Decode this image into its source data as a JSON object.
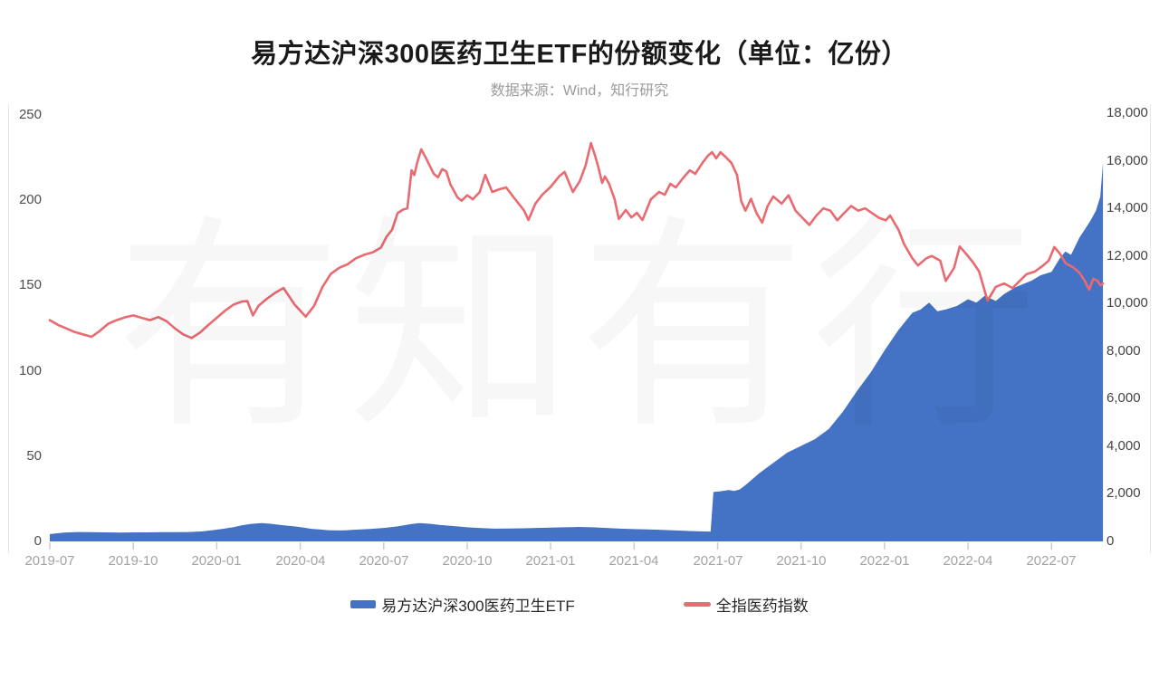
{
  "title": "易方达沪深300医药卫生ETF的份额变化（单位：亿份）",
  "subtitle": "数据来源：Wind，知行研究",
  "watermark": "有知有行",
  "colors": {
    "etf_area": "#4472c4",
    "index_line": "#e96a70",
    "title_text": "#1a1a1a",
    "subtitle_text": "#9b9b9b",
    "y_axis_text": "#4d4d4d",
    "x_axis_text": "#a3a3a3",
    "tick": "#cccccc",
    "plot_border": "#e7e7e7",
    "legend_text": "#262626"
  },
  "chart_data": {
    "type": "combo",
    "title": "易方达沪深300医药卫生ETF的份额变化（单位：亿份）",
    "subtitle": "数据来源：Wind，知行研究",
    "x_unit": "months_since_2019-07",
    "grid": "off",
    "legend_position": "bottom",
    "x_axis": {
      "labels": [
        "2019-07",
        "2019-10",
        "2020-01",
        "2020-04",
        "2020-07",
        "2020-10",
        "2021-01",
        "2021-04",
        "2021-07",
        "2021-10",
        "2022-01",
        "2022-04",
        "2022-07"
      ],
      "label_positions_months": [
        0,
        3,
        6,
        9,
        12,
        15,
        18,
        21,
        24,
        27,
        30,
        33,
        36
      ]
    },
    "left_axis": {
      "unit": "亿份",
      "tick_values": [
        0,
        50,
        100,
        150,
        200,
        250
      ],
      "tick_labels": [
        "0",
        "50",
        "100",
        "150",
        "200",
        "250"
      ],
      "range": [
        0,
        250
      ]
    },
    "right_axis": {
      "tick_values": [
        0,
        2000,
        4000,
        6000,
        8000,
        10000,
        12000,
        14000,
        16000,
        18000
      ],
      "tick_labels": [
        "0",
        "2,000",
        "4,000",
        "6,000",
        "8,000",
        "10,000",
        "12,000",
        "14,000",
        "16,000",
        "18,000"
      ],
      "range": [
        0,
        18000
      ]
    },
    "series": [
      {
        "name": "易方达沪深300医药卫生ETF",
        "type": "area",
        "axis": "left",
        "color": "#4472c4",
        "points": [
          [
            0,
            4.3
          ],
          [
            0.5,
            5.2
          ],
          [
            1,
            5.5
          ],
          [
            1.5,
            5.4
          ],
          [
            2,
            5.3
          ],
          [
            2.5,
            5.2
          ],
          [
            3,
            5.3
          ],
          [
            3.5,
            5.3
          ],
          [
            4,
            5.4
          ],
          [
            4.5,
            5.4
          ],
          [
            5,
            5.5
          ],
          [
            5.5,
            5.9
          ],
          [
            6,
            6.9
          ],
          [
            6.3,
            7.6
          ],
          [
            6.6,
            8.4
          ],
          [
            6.9,
            9.4
          ],
          [
            7.2,
            10.2
          ],
          [
            7.6,
            10.8
          ],
          [
            7.9,
            10.4
          ],
          [
            8.2,
            9.8
          ],
          [
            8.5,
            9.3
          ],
          [
            8.8,
            8.8
          ],
          [
            9.1,
            8.2
          ],
          [
            9.4,
            7.4
          ],
          [
            9.7,
            7.0
          ],
          [
            10,
            6.6
          ],
          [
            10.5,
            6.4
          ],
          [
            11,
            6.9
          ],
          [
            11.5,
            7.3
          ],
          [
            12,
            7.9
          ],
          [
            12.5,
            8.8
          ],
          [
            13,
            10.2
          ],
          [
            13.3,
            10.7
          ],
          [
            13.7,
            10.3
          ],
          [
            14,
            9.7
          ],
          [
            14.5,
            9.0
          ],
          [
            15,
            8.3
          ],
          [
            15.5,
            7.8
          ],
          [
            16,
            7.5
          ],
          [
            16.5,
            7.6
          ],
          [
            17,
            7.7
          ],
          [
            17.5,
            7.9
          ],
          [
            18,
            8.1
          ],
          [
            18.5,
            8.3
          ],
          [
            19,
            8.5
          ],
          [
            19.5,
            8.3
          ],
          [
            20,
            7.9
          ],
          [
            20.5,
            7.5
          ],
          [
            21,
            7.2
          ],
          [
            21.5,
            7.0
          ],
          [
            22,
            6.8
          ],
          [
            22.5,
            6.4
          ],
          [
            23,
            6.1
          ],
          [
            23.4,
            5.9
          ],
          [
            23.75,
            5.8
          ],
          [
            23.85,
            29
          ],
          [
            24.1,
            29.4
          ],
          [
            24.4,
            30.1
          ],
          [
            24.6,
            29.6
          ],
          [
            24.8,
            30.5
          ],
          [
            25,
            33
          ],
          [
            25.5,
            40
          ],
          [
            26,
            46
          ],
          [
            26.5,
            52
          ],
          [
            27,
            56
          ],
          [
            27.5,
            60
          ],
          [
            28,
            66
          ],
          [
            28.5,
            76
          ],
          [
            29,
            88
          ],
          [
            29.5,
            99
          ],
          [
            30,
            112
          ],
          [
            30.5,
            124
          ],
          [
            31,
            134
          ],
          [
            31.3,
            136
          ],
          [
            31.6,
            140
          ],
          [
            31.9,
            135
          ],
          [
            32.2,
            136
          ],
          [
            32.6,
            138
          ],
          [
            33,
            142
          ],
          [
            33.3,
            140
          ],
          [
            33.6,
            144
          ],
          [
            34,
            141
          ],
          [
            34.3,
            145
          ],
          [
            34.7,
            149
          ],
          [
            35,
            151
          ],
          [
            35.3,
            153
          ],
          [
            35.6,
            156
          ],
          [
            36,
            158
          ],
          [
            36.3,
            166
          ],
          [
            36.5,
            170
          ],
          [
            36.7,
            168
          ],
          [
            37,
            178
          ],
          [
            37.2,
            183
          ],
          [
            37.4,
            188
          ],
          [
            37.6,
            194
          ],
          [
            37.75,
            202
          ],
          [
            37.85,
            222
          ]
        ]
      },
      {
        "name": "全指医药指数",
        "type": "line",
        "axis": "right",
        "color": "#e96a70",
        "points": [
          [
            0,
            9300
          ],
          [
            0.3,
            9100
          ],
          [
            0.6,
            8950
          ],
          [
            0.9,
            8800
          ],
          [
            1.2,
            8700
          ],
          [
            1.5,
            8600
          ],
          [
            1.8,
            8850
          ],
          [
            2.1,
            9150
          ],
          [
            2.4,
            9300
          ],
          [
            2.7,
            9420
          ],
          [
            3,
            9500
          ],
          [
            3.3,
            9400
          ],
          [
            3.6,
            9300
          ],
          [
            3.9,
            9430
          ],
          [
            4.2,
            9250
          ],
          [
            4.5,
            8950
          ],
          [
            4.8,
            8700
          ],
          [
            5.1,
            8550
          ],
          [
            5.4,
            8780
          ],
          [
            5.7,
            9100
          ],
          [
            6,
            9400
          ],
          [
            6.3,
            9700
          ],
          [
            6.6,
            9950
          ],
          [
            6.9,
            10080
          ],
          [
            7.1,
            10100
          ],
          [
            7.3,
            9500
          ],
          [
            7.5,
            9900
          ],
          [
            7.8,
            10200
          ],
          [
            8.1,
            10450
          ],
          [
            8.4,
            10650
          ],
          [
            8.6,
            10300
          ],
          [
            8.8,
            9950
          ],
          [
            9,
            9700
          ],
          [
            9.2,
            9450
          ],
          [
            9.5,
            9900
          ],
          [
            9.8,
            10700
          ],
          [
            10.1,
            11250
          ],
          [
            10.4,
            11500
          ],
          [
            10.7,
            11650
          ],
          [
            11,
            11900
          ],
          [
            11.3,
            12050
          ],
          [
            11.6,
            12150
          ],
          [
            11.9,
            12350
          ],
          [
            12.1,
            12800
          ],
          [
            12.3,
            13100
          ],
          [
            12.5,
            13800
          ],
          [
            12.7,
            13950
          ],
          [
            12.85,
            14000
          ],
          [
            13,
            15600
          ],
          [
            13.1,
            15400
          ],
          [
            13.2,
            15900
          ],
          [
            13.35,
            16480
          ],
          [
            13.5,
            16150
          ],
          [
            13.65,
            15800
          ],
          [
            13.8,
            15450
          ],
          [
            13.95,
            15300
          ],
          [
            14.1,
            15650
          ],
          [
            14.25,
            15550
          ],
          [
            14.4,
            15000
          ],
          [
            14.65,
            14460
          ],
          [
            14.8,
            14320
          ],
          [
            15,
            14550
          ],
          [
            15.2,
            14380
          ],
          [
            15.45,
            14680
          ],
          [
            15.65,
            15410
          ],
          [
            15.9,
            14690
          ],
          [
            16.15,
            14800
          ],
          [
            16.4,
            14880
          ],
          [
            16.65,
            14490
          ],
          [
            16.85,
            14200
          ],
          [
            17.05,
            13900
          ],
          [
            17.2,
            13510
          ],
          [
            17.45,
            14190
          ],
          [
            17.7,
            14570
          ],
          [
            18,
            14900
          ],
          [
            18.3,
            15340
          ],
          [
            18.5,
            15530
          ],
          [
            18.8,
            14690
          ],
          [
            19.05,
            15150
          ],
          [
            19.25,
            15790
          ],
          [
            19.45,
            16740
          ],
          [
            19.6,
            16200
          ],
          [
            19.7,
            15790
          ],
          [
            19.85,
            15070
          ],
          [
            19.95,
            15340
          ],
          [
            20.1,
            15030
          ],
          [
            20.3,
            14380
          ],
          [
            20.45,
            13550
          ],
          [
            20.7,
            13930
          ],
          [
            20.9,
            13620
          ],
          [
            21.1,
            13810
          ],
          [
            21.3,
            13510
          ],
          [
            21.6,
            14380
          ],
          [
            21.9,
            14690
          ],
          [
            22.1,
            14570
          ],
          [
            22.3,
            15030
          ],
          [
            22.5,
            14880
          ],
          [
            22.75,
            15260
          ],
          [
            23,
            15600
          ],
          [
            23.2,
            15450
          ],
          [
            23.45,
            15900
          ],
          [
            23.65,
            16210
          ],
          [
            23.8,
            16360
          ],
          [
            23.95,
            16100
          ],
          [
            24.1,
            16360
          ],
          [
            24.3,
            16150
          ],
          [
            24.5,
            15900
          ],
          [
            24.7,
            15400
          ],
          [
            24.85,
            14300
          ],
          [
            25,
            13900
          ],
          [
            25.2,
            14400
          ],
          [
            25.4,
            13800
          ],
          [
            25.6,
            13400
          ],
          [
            25.8,
            14100
          ],
          [
            26,
            14500
          ],
          [
            26.3,
            14200
          ],
          [
            26.55,
            14550
          ],
          [
            26.8,
            13900
          ],
          [
            27.05,
            13600
          ],
          [
            27.3,
            13300
          ],
          [
            27.55,
            13700
          ],
          [
            27.8,
            14000
          ],
          [
            28.05,
            13900
          ],
          [
            28.3,
            13500
          ],
          [
            28.55,
            13800
          ],
          [
            28.8,
            14100
          ],
          [
            29.05,
            13900
          ],
          [
            29.3,
            14000
          ],
          [
            29.55,
            13800
          ],
          [
            29.8,
            13600
          ],
          [
            30.05,
            13500
          ],
          [
            30.2,
            13700
          ],
          [
            30.5,
            13100
          ],
          [
            30.7,
            12500
          ],
          [
            31,
            11900
          ],
          [
            31.2,
            11600
          ],
          [
            31.5,
            11900
          ],
          [
            31.7,
            12000
          ],
          [
            32,
            11800
          ],
          [
            32.2,
            10950
          ],
          [
            32.5,
            11500
          ],
          [
            32.7,
            12400
          ],
          [
            33,
            11990
          ],
          [
            33.2,
            11700
          ],
          [
            33.4,
            11340
          ],
          [
            33.7,
            10120
          ],
          [
            34,
            10700
          ],
          [
            34.3,
            10840
          ],
          [
            34.6,
            10650
          ],
          [
            34.9,
            11000
          ],
          [
            35.1,
            11230
          ],
          [
            35.4,
            11340
          ],
          [
            35.7,
            11600
          ],
          [
            35.9,
            11800
          ],
          [
            36.1,
            12370
          ],
          [
            36.3,
            12100
          ],
          [
            36.5,
            11700
          ],
          [
            36.8,
            11500
          ],
          [
            37,
            11300
          ],
          [
            37.2,
            10950
          ],
          [
            37.35,
            10580
          ],
          [
            37.5,
            11040
          ],
          [
            37.65,
            10960
          ],
          [
            37.75,
            10770
          ],
          [
            37.85,
            10840
          ]
        ]
      }
    ]
  }
}
